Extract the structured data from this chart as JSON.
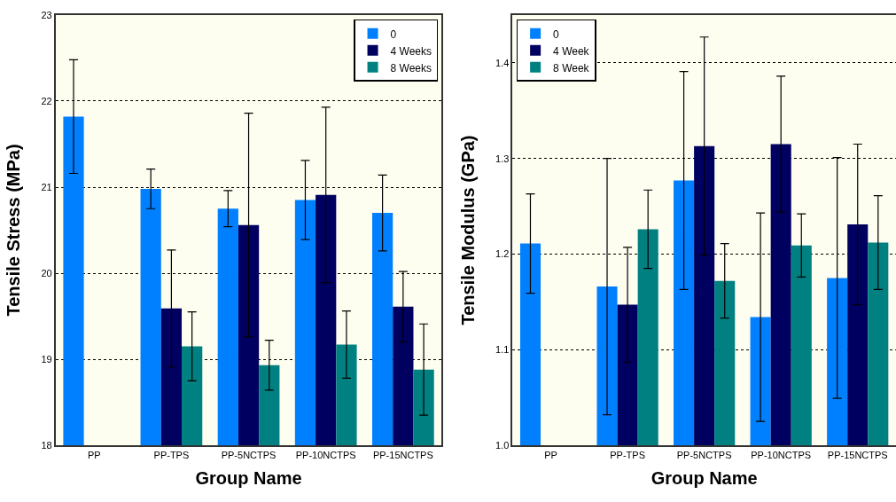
{
  "chart_data": [
    {
      "type": "bar",
      "xlabel": "Group Name",
      "ylabel": "Tensile Stress (MPa)",
      "categories": [
        "PP",
        "PP-TPS",
        "PP-5NCTPS",
        "PP-10NCTPS",
        "PP-15NCTPS"
      ],
      "ylim": [
        18,
        23
      ],
      "yticks": [
        18,
        19,
        20,
        21,
        22,
        23
      ],
      "grid": "y",
      "legend": "top right",
      "series": [
        {
          "name": "0",
          "color": "#0080ff",
          "values": [
            21.82,
            20.98,
            20.75,
            20.85,
            20.7
          ],
          "errors": [
            0.66,
            0.23,
            0.21,
            0.46,
            0.44
          ]
        },
        {
          "name": "4 Weeks",
          "color": "#000060",
          "values": [
            null,
            19.59,
            20.56,
            20.91,
            19.61
          ],
          "errors": [
            null,
            0.68,
            1.3,
            1.02,
            0.41
          ]
        },
        {
          "name": "8 Weeks",
          "color": "#008080",
          "values": [
            null,
            19.15,
            18.93,
            19.17,
            18.88
          ],
          "errors": [
            null,
            0.4,
            0.29,
            0.39,
            0.53
          ]
        }
      ]
    },
    {
      "type": "bar",
      "xlabel": "Group Name",
      "ylabel": "Tensile Modulus (GPa)",
      "categories": [
        "PP",
        "PP-TPS",
        "PP-5NCTPS",
        "PP-10NCTPS",
        "PP-15NCTPS"
      ],
      "ylim": [
        1.0,
        1.45
      ],
      "yticks": [
        {
          "value": 1.0,
          "label": "1.0"
        },
        1.1,
        1.2,
        1.3,
        1.4
      ],
      "grid": "y",
      "legend": "top left",
      "series": [
        {
          "name": "0",
          "color": "#0080ff",
          "values": [
            1.211,
            1.166,
            1.277,
            1.134,
            1.175
          ],
          "errors": [
            0.052,
            0.134,
            0.114,
            0.109,
            0.126
          ]
        },
        {
          "name": "4 Week",
          "color": "#000060",
          "values": [
            null,
            1.147,
            1.313,
            1.315,
            1.231
          ],
          "errors": [
            null,
            0.06,
            0.114,
            0.071,
            0.084
          ]
        },
        {
          "name": "8 Week",
          "color": "#008080",
          "values": [
            null,
            1.226,
            1.172,
            1.209,
            1.212
          ],
          "errors": [
            null,
            0.041,
            0.039,
            0.033,
            0.049
          ]
        }
      ]
    }
  ]
}
